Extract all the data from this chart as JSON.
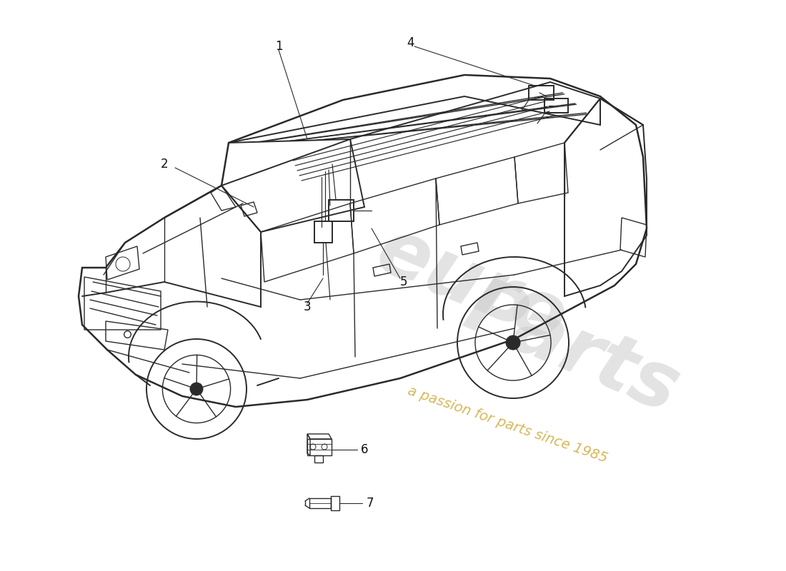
{
  "background_color": "#ffffff",
  "line_color": "#2a2a2a",
  "label_color": "#111111",
  "watermark_euro_color": "#d8d8d8",
  "watermark_passion_color": "#c8a830",
  "part_labels": [
    "1",
    "2",
    "3",
    "4",
    "5",
    "6",
    "7"
  ],
  "figsize": [
    11.0,
    8.0
  ],
  "dpi": 100,
  "car_scale": 1.0
}
